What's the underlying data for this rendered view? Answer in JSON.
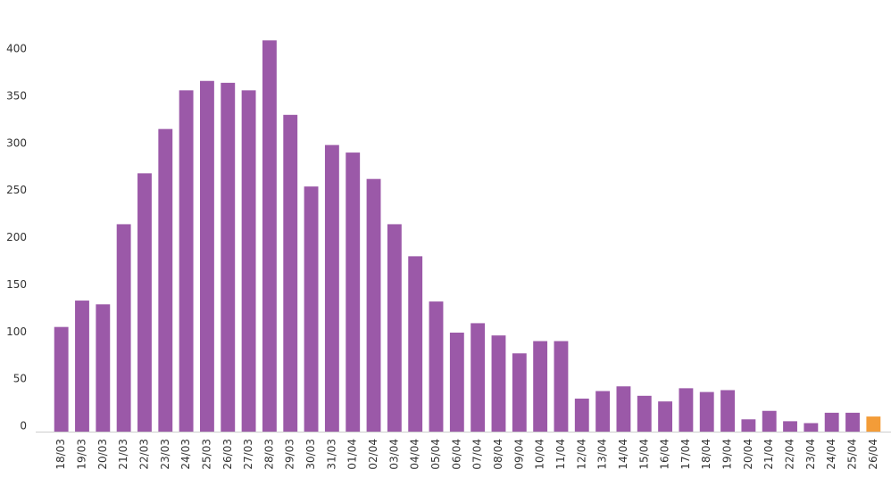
{
  "chart_data": {
    "type": "bar",
    "categories": [
      "18/03",
      "19/03",
      "20/03",
      "21/03",
      "22/03",
      "23/03",
      "24/03",
      "25/03",
      "26/03",
      "27/03",
      "28/03",
      "29/03",
      "30/03",
      "31/03",
      "01/04",
      "02/04",
      "03/04",
      "04/04",
      "05/04",
      "06/04",
      "07/04",
      "08/04",
      "09/04",
      "10/04",
      "11/04",
      "12/04",
      "13/04",
      "14/04",
      "15/04",
      "16/04",
      "17/04",
      "18/04",
      "19/04",
      "20/04",
      "21/04",
      "22/04",
      "23/04",
      "24/04",
      "25/04",
      "26/04"
    ],
    "values": [
      111,
      139,
      135,
      220,
      274,
      321,
      362,
      372,
      370,
      362,
      415,
      336,
      260,
      304,
      296,
      268,
      220,
      186,
      138,
      105,
      115,
      102,
      83,
      96,
      96,
      35,
      43,
      48,
      38,
      32,
      46,
      42,
      44,
      13,
      22,
      11,
      9,
      20,
      20,
      16
    ],
    "colors": [
      "#9b59a8",
      "#9b59a8",
      "#9b59a8",
      "#9b59a8",
      "#9b59a8",
      "#9b59a8",
      "#9b59a8",
      "#9b59a8",
      "#9b59a8",
      "#9b59a8",
      "#9b59a8",
      "#9b59a8",
      "#9b59a8",
      "#9b59a8",
      "#9b59a8",
      "#9b59a8",
      "#9b59a8",
      "#9b59a8",
      "#9b59a8",
      "#9b59a8",
      "#9b59a8",
      "#9b59a8",
      "#9b59a8",
      "#9b59a8",
      "#9b59a8",
      "#9b59a8",
      "#9b59a8",
      "#9b59a8",
      "#9b59a8",
      "#9b59a8",
      "#9b59a8",
      "#9b59a8",
      "#9b59a8",
      "#9b59a8",
      "#9b59a8",
      "#9b59a8",
      "#9b59a8",
      "#9b59a8",
      "#9b59a8",
      "#f39c38"
    ],
    "ylim": [
      0,
      420
    ],
    "yticks": [
      0,
      50,
      100,
      150,
      200,
      250,
      300,
      350,
      400
    ],
    "grid": false
  }
}
